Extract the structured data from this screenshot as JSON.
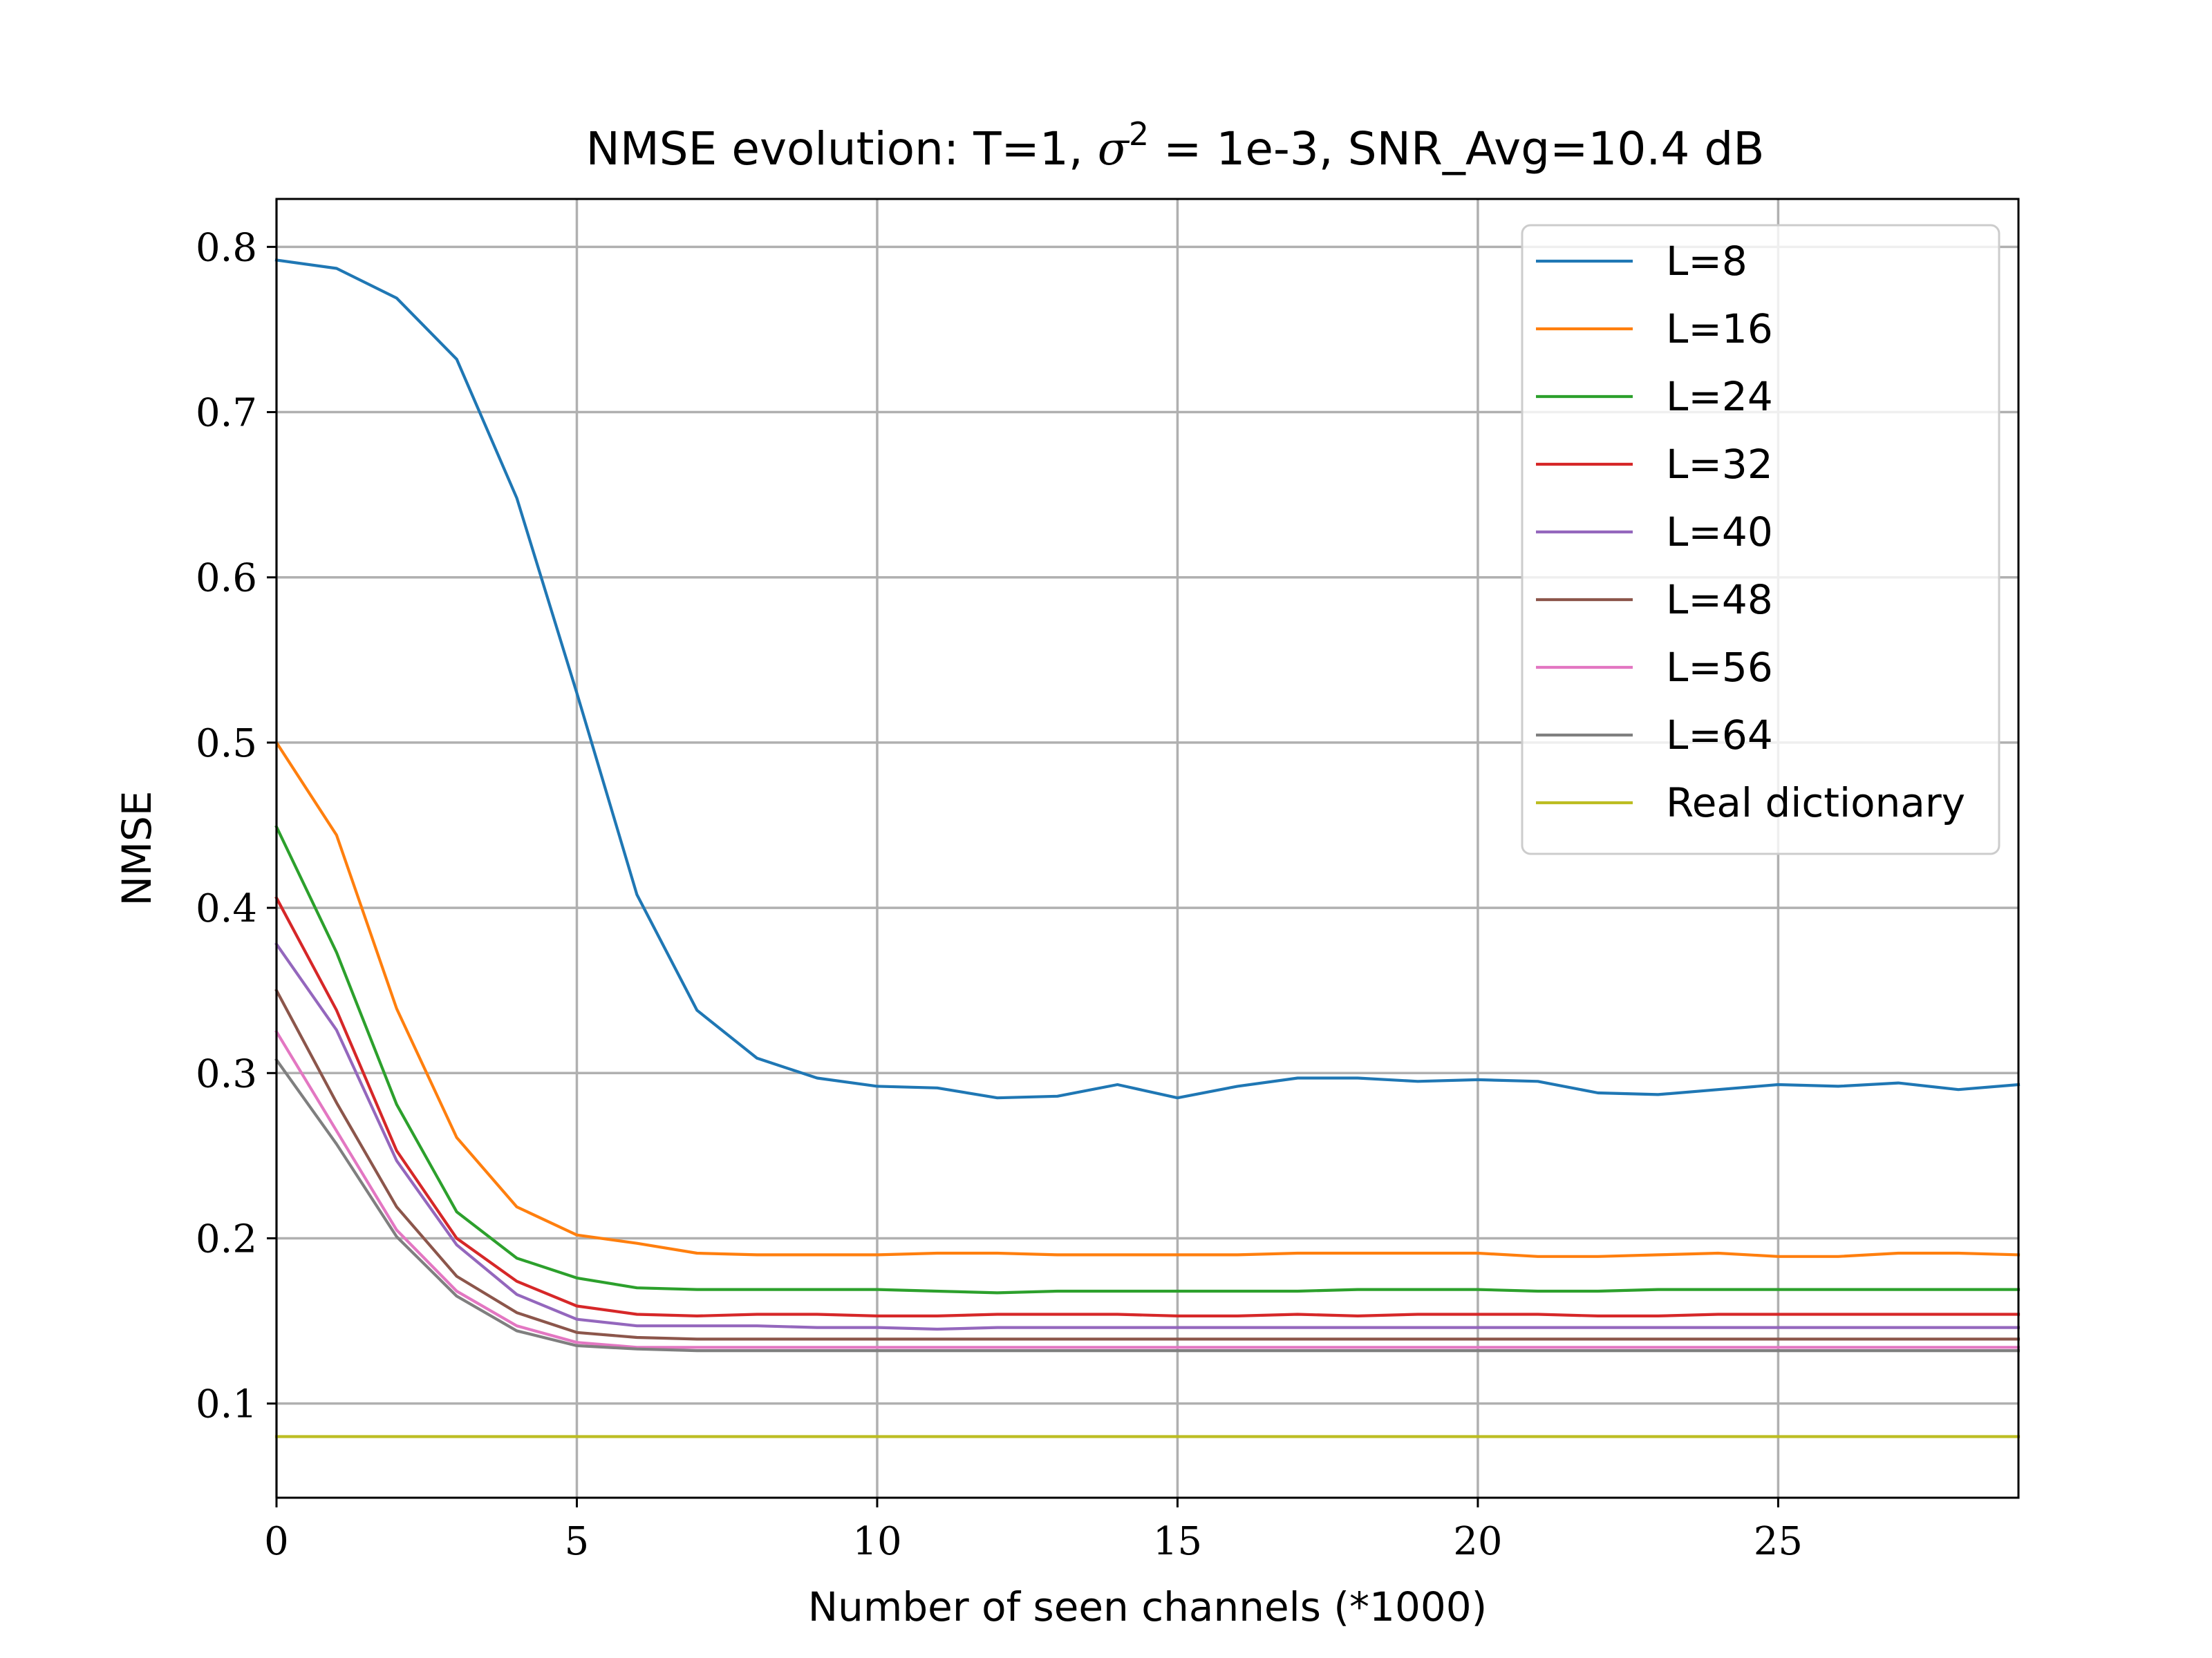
{
  "chart_data": {
    "type": "line",
    "title": "NMSE evolution: T=1, σ² = 1e-3, SNR_Avg=10.4 dB",
    "title_parts": {
      "prefix": "NMSE evolution: T=1, ",
      "sigma": "σ",
      "sup": "2",
      "suffix": " = 1e-3, SNR_Avg=10.4 dB"
    },
    "xlabel": "Number of seen channels (*1000)",
    "ylabel": "NMSE",
    "xlim": [
      0,
      29
    ],
    "ylim": [
      0.043,
      0.829
    ],
    "xticks": [
      0,
      5,
      10,
      15,
      20,
      25
    ],
    "xtick_labels": [
      "0",
      "5",
      "10",
      "15",
      "20",
      "25"
    ],
    "yticks": [
      0.1,
      0.2,
      0.3,
      0.4,
      0.5,
      0.6,
      0.7,
      0.8
    ],
    "ytick_labels": [
      "0.1",
      "0.2",
      "0.3",
      "0.4",
      "0.5",
      "0.6",
      "0.7",
      "0.8"
    ],
    "grid": true,
    "legend_position": "top-right",
    "x": [
      0,
      1,
      2,
      3,
      4,
      5,
      6,
      7,
      8,
      9,
      10,
      11,
      12,
      13,
      14,
      15,
      16,
      17,
      18,
      19,
      20,
      21,
      22,
      23,
      24,
      25,
      26,
      27,
      28,
      29
    ],
    "series": [
      {
        "name": "L=8",
        "color": "#1f77b4",
        "values": [
          0.792,
          0.787,
          0.769,
          0.732,
          0.648,
          0.53,
          0.408,
          0.338,
          0.309,
          0.297,
          0.292,
          0.291,
          0.285,
          0.286,
          0.293,
          0.285,
          0.292,
          0.297,
          0.297,
          0.295,
          0.296,
          0.295,
          0.288,
          0.287,
          0.29,
          0.293,
          0.292,
          0.294,
          0.29,
          0.293
        ]
      },
      {
        "name": "L=16",
        "color": "#ff7f0e",
        "values": [
          0.5,
          0.444,
          0.339,
          0.261,
          0.219,
          0.202,
          0.197,
          0.191,
          0.19,
          0.19,
          0.19,
          0.191,
          0.191,
          0.19,
          0.19,
          0.19,
          0.19,
          0.191,
          0.191,
          0.191,
          0.191,
          0.189,
          0.189,
          0.19,
          0.191,
          0.189,
          0.189,
          0.191,
          0.191,
          0.19
        ]
      },
      {
        "name": "L=24",
        "color": "#2ca02c",
        "values": [
          0.449,
          0.373,
          0.281,
          0.216,
          0.188,
          0.176,
          0.17,
          0.169,
          0.169,
          0.169,
          0.169,
          0.168,
          0.167,
          0.168,
          0.168,
          0.168,
          0.168,
          0.168,
          0.169,
          0.169,
          0.169,
          0.168,
          0.168,
          0.169,
          0.169,
          0.169,
          0.169,
          0.169,
          0.169,
          0.169
        ]
      },
      {
        "name": "L=32",
        "color": "#d62728",
        "values": [
          0.406,
          0.338,
          0.253,
          0.2,
          0.174,
          0.159,
          0.154,
          0.153,
          0.154,
          0.154,
          0.153,
          0.153,
          0.154,
          0.154,
          0.154,
          0.153,
          0.153,
          0.154,
          0.153,
          0.154,
          0.154,
          0.154,
          0.153,
          0.153,
          0.154,
          0.154,
          0.154,
          0.154,
          0.154,
          0.154
        ]
      },
      {
        "name": "L=40",
        "color": "#9467bd",
        "values": [
          0.378,
          0.326,
          0.247,
          0.196,
          0.166,
          0.151,
          0.147,
          0.147,
          0.147,
          0.146,
          0.146,
          0.145,
          0.146,
          0.146,
          0.146,
          0.146,
          0.146,
          0.146,
          0.146,
          0.146,
          0.146,
          0.146,
          0.146,
          0.146,
          0.146,
          0.146,
          0.146,
          0.146,
          0.146,
          0.146
        ]
      },
      {
        "name": "L=48",
        "color": "#8c564b",
        "values": [
          0.35,
          0.282,
          0.219,
          0.177,
          0.155,
          0.143,
          0.14,
          0.139,
          0.139,
          0.139,
          0.139,
          0.139,
          0.139,
          0.139,
          0.139,
          0.139,
          0.139,
          0.139,
          0.139,
          0.139,
          0.139,
          0.139,
          0.139,
          0.139,
          0.139,
          0.139,
          0.139,
          0.139,
          0.139,
          0.139
        ]
      },
      {
        "name": "L=56",
        "color": "#e377c2",
        "values": [
          0.325,
          0.265,
          0.205,
          0.168,
          0.147,
          0.137,
          0.134,
          0.134,
          0.134,
          0.134,
          0.134,
          0.134,
          0.134,
          0.134,
          0.134,
          0.134,
          0.134,
          0.134,
          0.134,
          0.134,
          0.134,
          0.134,
          0.134,
          0.134,
          0.134,
          0.134,
          0.134,
          0.134,
          0.134,
          0.134
        ]
      },
      {
        "name": "L=64",
        "color": "#7f7f7f",
        "values": [
          0.308,
          0.257,
          0.201,
          0.165,
          0.144,
          0.135,
          0.133,
          0.132,
          0.132,
          0.132,
          0.132,
          0.132,
          0.132,
          0.132,
          0.132,
          0.132,
          0.132,
          0.132,
          0.132,
          0.132,
          0.132,
          0.132,
          0.132,
          0.132,
          0.132,
          0.132,
          0.132,
          0.132,
          0.132,
          0.132
        ]
      },
      {
        "name": "Real dictionary",
        "color": "#bcbd22",
        "values": [
          0.08,
          0.08,
          0.08,
          0.08,
          0.08,
          0.08,
          0.08,
          0.08,
          0.08,
          0.08,
          0.08,
          0.08,
          0.08,
          0.08,
          0.08,
          0.08,
          0.08,
          0.08,
          0.08,
          0.08,
          0.08,
          0.08,
          0.08,
          0.08,
          0.08,
          0.08,
          0.08,
          0.08,
          0.08,
          0.08
        ]
      }
    ]
  }
}
